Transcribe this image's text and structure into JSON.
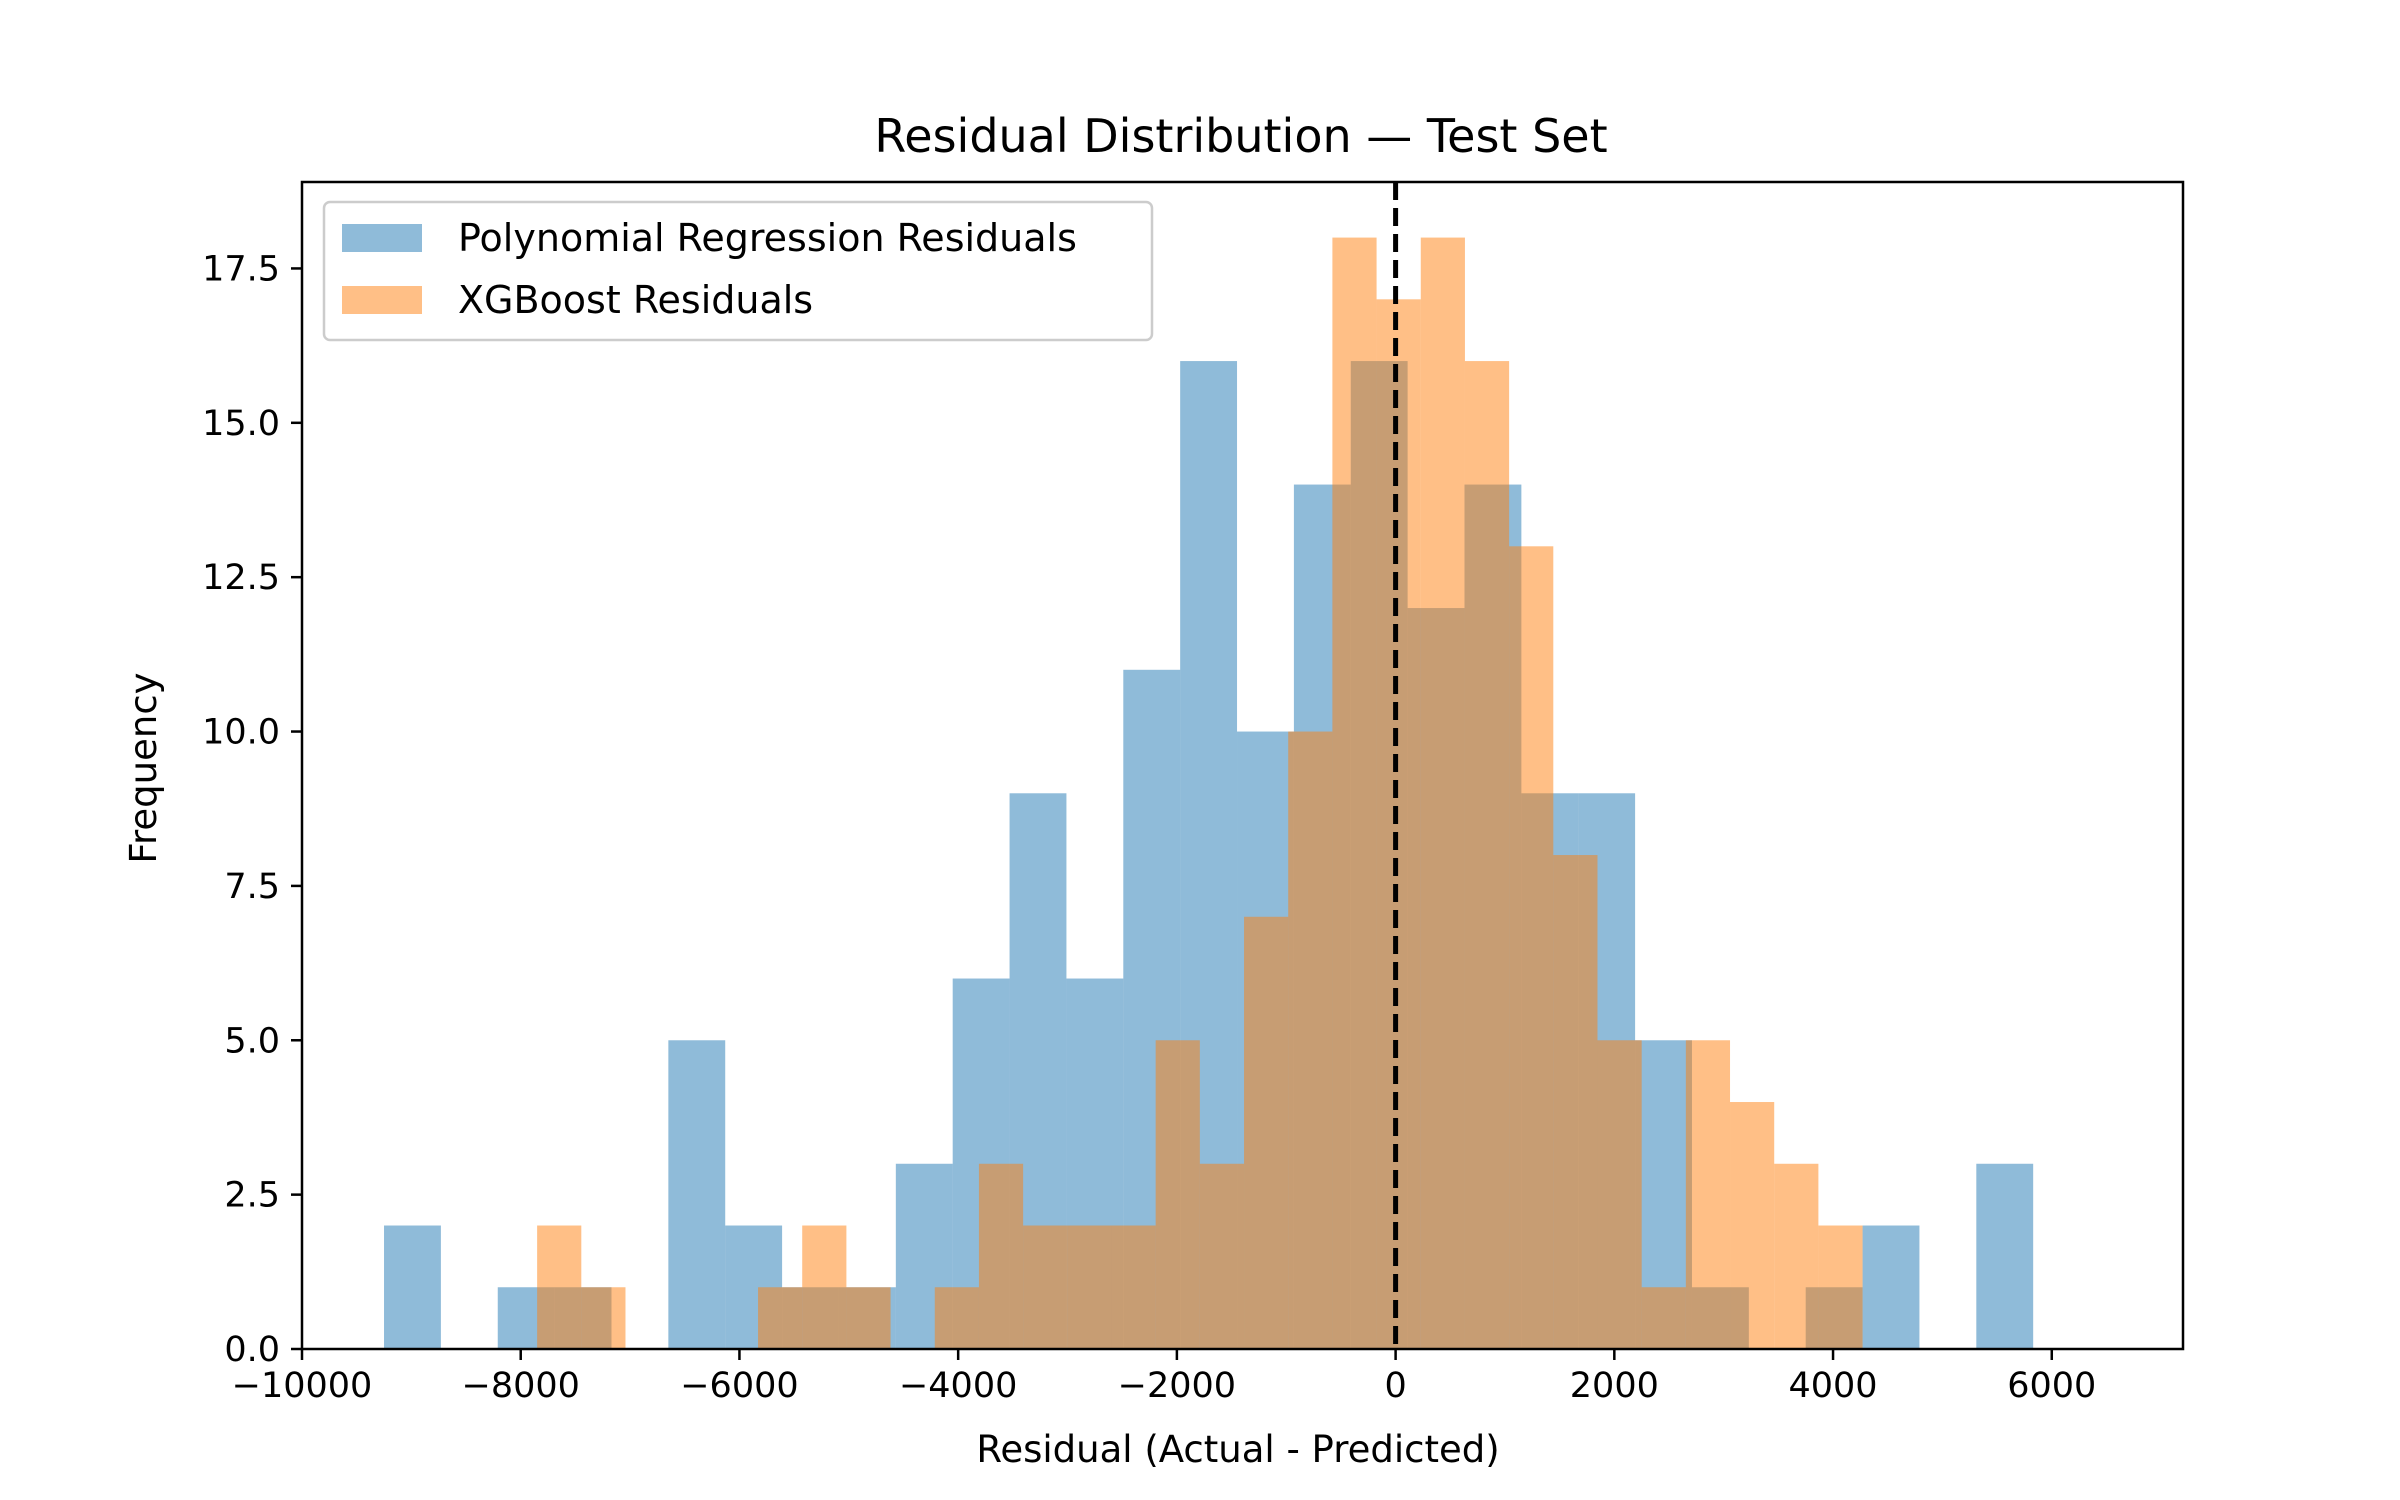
{
  "chart_data": {
    "type": "bar",
    "title": "Residual Distribution — Test Set",
    "xlabel": "Residual (Actual - Predicted)",
    "ylabel": "Frequency",
    "xlim": [
      -10000,
      7200
    ],
    "ylim": [
      0,
      18.9
    ],
    "xticks": [
      -10000,
      -8000,
      -6000,
      -4000,
      -2000,
      0,
      2000,
      4000,
      6000
    ],
    "xtick_labels": [
      "−10000",
      "−8000",
      "−6000",
      "−4000",
      "−2000",
      "0",
      "2000",
      "4000",
      "6000"
    ],
    "yticks": [
      0,
      2.5,
      5,
      7.5,
      10,
      12.5,
      15,
      17.5
    ],
    "ytick_labels": [
      "0.0",
      "2.5",
      "5.0",
      "7.5",
      "10.0",
      "12.5",
      "15.0",
      "17.5"
    ],
    "grid": false,
    "legend_position": "top-left",
    "reference_line": {
      "x": 0,
      "style": "dashed",
      "color": "#000000"
    },
    "series": [
      {
        "name": "Polynomial Regression Residuals",
        "color": "#1f77b4",
        "alpha": 0.5,
        "bin_start": -9250,
        "bin_width": 520,
        "values": [
          2,
          0,
          1,
          1,
          0,
          5,
          2,
          1,
          1,
          3,
          6,
          9,
          6,
          11,
          16,
          10,
          14,
          16,
          12,
          14,
          9,
          9,
          5,
          1,
          0,
          1,
          2,
          0,
          3
        ]
      },
      {
        "name": "XGBoost Residuals",
        "color": "#ff7f0e",
        "alpha": 0.5,
        "bin_start": -7850,
        "bin_width": 404,
        "values": [
          2,
          1,
          0,
          0,
          0,
          1,
          2,
          1,
          0,
          1,
          3,
          2,
          2,
          2,
          5,
          3,
          7,
          10,
          18,
          17,
          18,
          16,
          13,
          8,
          5,
          1,
          5,
          4,
          3,
          2
        ]
      }
    ]
  }
}
